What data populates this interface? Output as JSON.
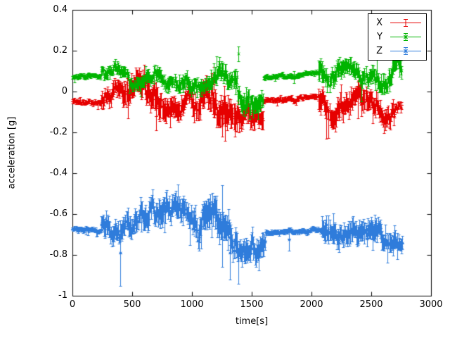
{
  "chart_data": {
    "type": "scatter",
    "title": "",
    "xlabel": "time[s]",
    "ylabel": "acceleration [g]",
    "xlim": [
      0,
      3000
    ],
    "ylim": [
      -1,
      0.4
    ],
    "xticks": [
      0,
      500,
      1000,
      1500,
      2000,
      2500,
      3000
    ],
    "xtick_labels": [
      "0",
      "500",
      "1000",
      "1500",
      "2000",
      "2500",
      "3000"
    ],
    "yticks": [
      -1,
      -0.8,
      -0.6,
      -0.4,
      -0.2,
      0,
      0.2,
      0.4
    ],
    "ytick_labels": [
      "-1",
      "-0.8",
      "-0.6",
      "-0.4",
      "-0.2",
      "0",
      "0.2",
      "0.4"
    ],
    "grid": false,
    "legend_position": "top-right-inside",
    "plot_style": "errorbars",
    "point_step_s": 6,
    "series": [
      {
        "name": "X",
        "color": "#e60000",
        "marker": "plus",
        "baseline": -0.05,
        "segments": [
          {
            "x0": 0,
            "x1": 240,
            "mean": -0.05,
            "amp": 0.012,
            "wander": 0.004
          },
          {
            "x0": 240,
            "x1": 420,
            "mean": -0.045,
            "amp": 0.04,
            "wander": 0.018
          },
          {
            "x0": 420,
            "x1": 780,
            "mean": -0.06,
            "amp": 0.06,
            "wander": 0.028
          },
          {
            "x0": 780,
            "x1": 1050,
            "mean": -0.05,
            "amp": 0.05,
            "wander": 0.022
          },
          {
            "x0": 1050,
            "x1": 1380,
            "mean": -0.065,
            "amp": 0.07,
            "wander": 0.03
          },
          {
            "x0": 1380,
            "x1": 1600,
            "mean": -0.05,
            "amp": 0.055,
            "wander": 0.025
          },
          {
            "x0": 1600,
            "x1": 2060,
            "mean": -0.03,
            "amp": 0.012,
            "wander": 0.004
          },
          {
            "x0": 2060,
            "x1": 2450,
            "mean": -0.05,
            "amp": 0.055,
            "wander": 0.026
          },
          {
            "x0": 2450,
            "x1": 2700,
            "mean": -0.05,
            "amp": 0.05,
            "wander": 0.022
          },
          {
            "x0": 2700,
            "x1": 2760,
            "mean": -0.04,
            "amp": 0.02,
            "wander": 0.01
          }
        ],
        "outliers": [
          {
            "x": 700,
            "y0": -0.19,
            "y1": -0.05
          },
          {
            "x": 1180,
            "y0": -0.05,
            "y1": 0.12
          },
          {
            "x": 1255,
            "y0": -0.22,
            "y1": -0.04
          }
        ]
      },
      {
        "name": "Y",
        "color": "#00b400",
        "marker": "cross",
        "baseline": 0.08,
        "segments": [
          {
            "x0": 0,
            "x1": 240,
            "mean": 0.065,
            "amp": 0.012,
            "wander": 0.004
          },
          {
            "x0": 240,
            "x1": 700,
            "mean": 0.09,
            "amp": 0.03,
            "wander": 0.015
          },
          {
            "x0": 700,
            "x1": 1140,
            "mean": 0.085,
            "amp": 0.035,
            "wander": 0.018
          },
          {
            "x0": 1140,
            "x1": 1380,
            "mean": 0.08,
            "amp": 0.045,
            "wander": 0.022
          },
          {
            "x0": 1380,
            "x1": 1600,
            "mean": 0.05,
            "amp": 0.05,
            "wander": 0.03
          },
          {
            "x0": 1600,
            "x1": 2060,
            "mean": 0.08,
            "amp": 0.012,
            "wander": 0.004
          },
          {
            "x0": 2060,
            "x1": 2300,
            "mean": 0.08,
            "amp": 0.045,
            "wander": 0.025
          },
          {
            "x0": 2300,
            "x1": 2550,
            "mean": 0.09,
            "amp": 0.04,
            "wander": 0.02
          },
          {
            "x0": 2550,
            "x1": 2760,
            "mean": 0.075,
            "amp": 0.045,
            "wander": 0.025
          }
        ],
        "outliers": [
          {
            "x": 1390,
            "y0": 0.15,
            "y1": 0.22
          },
          {
            "x": 1850,
            "y0": 0.04,
            "y1": 0.1
          },
          {
            "x": 2150,
            "y0": -0.005,
            "y1": 0.06
          },
          {
            "x": 2650,
            "y0": 0.0,
            "y1": 0.07
          }
        ]
      },
      {
        "name": "Z",
        "color": "#2f7cdb",
        "marker": "asterisk",
        "baseline": -0.67,
        "segments": [
          {
            "x0": 0,
            "x1": 240,
            "mean": -0.67,
            "amp": 0.012,
            "wander": 0.004
          },
          {
            "x0": 240,
            "x1": 520,
            "mean": -0.67,
            "amp": 0.05,
            "wander": 0.02
          },
          {
            "x0": 520,
            "x1": 800,
            "mean": -0.655,
            "amp": 0.06,
            "wander": 0.025
          },
          {
            "x0": 800,
            "x1": 1020,
            "mean": -0.645,
            "amp": 0.055,
            "wander": 0.022
          },
          {
            "x0": 1020,
            "x1": 1380,
            "mean": -0.68,
            "amp": 0.075,
            "wander": 0.03
          },
          {
            "x0": 1380,
            "x1": 1620,
            "mean": -0.68,
            "amp": 0.06,
            "wander": 0.028
          },
          {
            "x0": 1620,
            "x1": 2090,
            "mean": -0.675,
            "amp": 0.012,
            "wander": 0.004
          },
          {
            "x0": 2090,
            "x1": 2470,
            "mean": -0.655,
            "amp": 0.055,
            "wander": 0.024
          },
          {
            "x0": 2470,
            "x1": 2760,
            "mean": -0.67,
            "amp": 0.05,
            "wander": 0.02
          }
        ],
        "outliers": [
          {
            "x": 400,
            "y0": -0.95,
            "y1": -0.63
          },
          {
            "x": 1250,
            "y0": -0.86,
            "y1": -0.46
          },
          {
            "x": 1320,
            "y0": -0.92,
            "y1": -0.66
          },
          {
            "x": 1810,
            "y0": -0.78,
            "y1": -0.665
          }
        ]
      }
    ]
  }
}
